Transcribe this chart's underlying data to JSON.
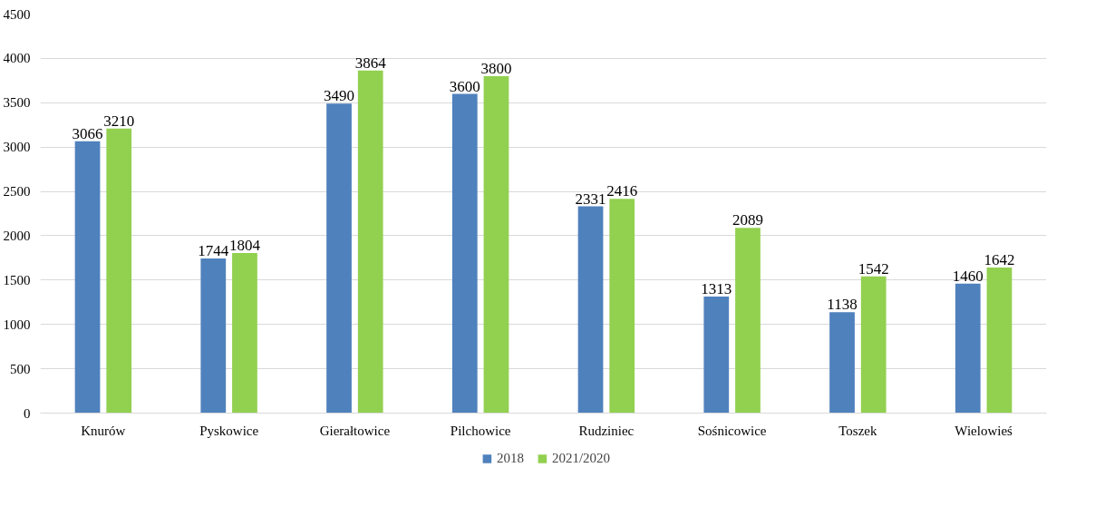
{
  "chart_data": {
    "type": "bar",
    "categories": [
      "Knurów",
      "Pyskowice",
      "Gierałtowice",
      "Pilchowice",
      "Rudziniec",
      "Sośnicowice",
      "Toszek",
      "Wielowieś"
    ],
    "series": [
      {
        "name": "2018",
        "color": "#4f81bd",
        "values": [
          3066,
          1744,
          3490,
          3600,
          2331,
          1313,
          1138,
          1460
        ]
      },
      {
        "name": "2021/2020",
        "color": "#92d050",
        "values": [
          3210,
          1804,
          3864,
          3800,
          2416,
          2089,
          1542,
          1642
        ]
      }
    ],
    "ylim": [
      0,
      4500
    ],
    "yticks": [
      0,
      500,
      1000,
      1500,
      2000,
      2500,
      3000,
      3500,
      4000,
      4500
    ],
    "grid": "y",
    "legend": "bottom",
    "data_labels": true
  }
}
